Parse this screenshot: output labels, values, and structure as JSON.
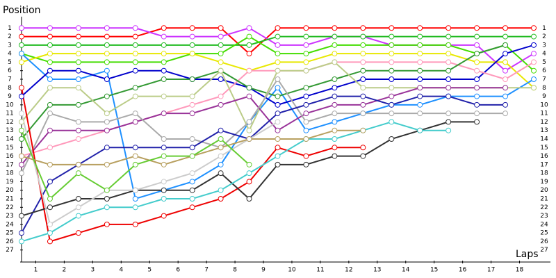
{
  "chart_data": {
    "type": "line",
    "y_title": "Position",
    "x_title": "Laps",
    "x": [
      0,
      1,
      2,
      3,
      4,
      5,
      6,
      7,
      8,
      9,
      10,
      11,
      12,
      13,
      14,
      15,
      16,
      17,
      18
    ],
    "xlim": [
      0,
      18
    ],
    "xticks": [
      {
        "value": 0.5,
        "label": "1"
      },
      {
        "value": 1.5,
        "label": "2"
      },
      {
        "value": 2.5,
        "label": "3"
      },
      {
        "value": 3.5,
        "label": "4"
      },
      {
        "value": 4.5,
        "label": "5"
      },
      {
        "value": 5.5,
        "label": "6"
      },
      {
        "value": 6.5,
        "label": "7"
      },
      {
        "value": 7.5,
        "label": "8"
      },
      {
        "value": 8.5,
        "label": "9"
      },
      {
        "value": 9.5,
        "label": "10"
      },
      {
        "value": 10.5,
        "label": "11"
      },
      {
        "value": 11.5,
        "label": "12"
      },
      {
        "value": 12.5,
        "label": "13"
      },
      {
        "value": 13.5,
        "label": "14"
      },
      {
        "value": 14.5,
        "label": "15"
      },
      {
        "value": 15.5,
        "label": "16"
      },
      {
        "value": 16.5,
        "label": "17"
      },
      {
        "value": 17.5,
        "label": "18"
      }
    ],
    "ylim": [
      28,
      0
    ],
    "yticks": [
      1,
      2,
      3,
      4,
      5,
      6,
      7,
      8,
      9,
      10,
      11,
      12,
      13,
      14,
      15,
      16,
      17,
      18,
      19,
      20,
      21,
      22,
      23,
      24,
      25,
      26,
      27
    ],
    "series": [
      {
        "color": "#ff0000",
        "values": [
          2,
          2,
          2,
          2,
          2,
          1,
          1,
          1,
          4,
          1,
          1,
          1,
          1,
          1,
          1,
          1,
          1,
          1,
          1
        ]
      },
      {
        "color": "#cc33ff",
        "values": [
          1,
          1,
          1,
          1,
          1,
          2,
          2,
          2,
          1,
          3,
          3,
          2,
          2,
          3,
          3,
          3,
          3,
          6,
          4
        ]
      },
      {
        "color": "#22bb22",
        "values": [
          3,
          3,
          3,
          3,
          3,
          3,
          3,
          3,
          3,
          2,
          2,
          2,
          2,
          2,
          2,
          2,
          2,
          2,
          2
        ]
      },
      {
        "color": "#44dd00",
        "values": [
          4,
          5,
          5,
          5,
          5,
          5,
          4,
          4,
          2,
          4,
          4,
          3,
          3,
          3,
          3,
          3,
          4,
          3,
          6
        ]
      },
      {
        "color": "#e8e800",
        "values": [
          5,
          4,
          4,
          4,
          4,
          4,
          4,
          5,
          6,
          5,
          5,
          4,
          4,
          4,
          4,
          4,
          5,
          5,
          8
        ]
      },
      {
        "color": "#1e90ff",
        "values": [
          4,
          7,
          7,
          6,
          21,
          20,
          19,
          17,
          12,
          8,
          13,
          12,
          11,
          10,
          10,
          9,
          9,
          9,
          7
        ]
      },
      {
        "color": "#0000cc",
        "values": [
          9,
          6,
          6,
          7,
          6,
          6,
          7,
          7,
          8,
          10,
          9,
          8,
          7,
          7,
          7,
          7,
          7,
          4,
          3
        ]
      },
      {
        "color": "#ff99bb",
        "values": [
          16,
          15,
          14,
          13,
          12,
          11,
          10,
          9,
          6,
          6,
          6,
          5,
          5,
          5,
          5,
          5,
          6,
          7,
          5
        ]
      },
      {
        "color": "#339933",
        "values": [
          14,
          10,
          10,
          9,
          8,
          7,
          7,
          6,
          8,
          9,
          8,
          7,
          6,
          6,
          6,
          6,
          4,
          3,
          null
        ]
      },
      {
        "color": "#bbcc88",
        "values": [
          12,
          8,
          8,
          11,
          9,
          9,
          9,
          6,
          13,
          6,
          6,
          5,
          8,
          8,
          8,
          8,
          8,
          8,
          8
        ]
      },
      {
        "color": "#993399",
        "values": [
          17,
          13,
          13,
          13,
          12,
          11,
          11,
          10,
          9,
          13,
          11,
          10,
          10,
          9,
          8,
          8,
          8,
          8,
          null
        ]
      },
      {
        "color": "#aaaaaa",
        "values": [
          18,
          11,
          12,
          12,
          11,
          14,
          14,
          15,
          12,
          7,
          12,
          11,
          11,
          11,
          11,
          11,
          11,
          11,
          null
        ]
      },
      {
        "color": "#2222aa",
        "values": [
          25,
          19,
          17,
          15,
          15,
          15,
          15,
          13,
          14,
          11,
          10,
          9,
          9,
          10,
          9,
          9,
          10,
          10,
          null
        ]
      },
      {
        "color": "#ee0000",
        "values": [
          8,
          26,
          25,
          24,
          24,
          23,
          22,
          21,
          19,
          15,
          16,
          15,
          15,
          null,
          null,
          null,
          null,
          null,
          null
        ]
      },
      {
        "color": "#333333",
        "values": [
          23,
          22,
          21,
          21,
          20,
          20,
          20,
          18,
          21,
          17,
          17,
          16,
          16,
          14,
          13,
          12,
          12,
          null,
          null
        ]
      },
      {
        "color": "#44cccc",
        "values": [
          26,
          25,
          23,
          22,
          22,
          21,
          21,
          20,
          18,
          16,
          14,
          14,
          13,
          12,
          13,
          13,
          null,
          null,
          null
        ]
      },
      {
        "color": "#cccccc",
        "values": [
          11,
          24,
          22,
          20,
          20,
          19,
          18,
          16,
          14,
          12,
          null,
          null,
          null,
          null,
          null,
          null,
          null,
          null,
          null
        ]
      },
      {
        "color": "#b8a060",
        "values": [
          16,
          17,
          17,
          17,
          16,
          17,
          16,
          15,
          14,
          14,
          14,
          13,
          13,
          null,
          null,
          null,
          null,
          null,
          null
        ]
      },
      {
        "color": "#66cc33",
        "values": [
          13,
          21,
          18,
          20,
          17,
          16,
          16,
          14,
          17,
          null,
          null,
          null,
          null,
          null,
          null,
          null,
          null,
          null,
          null
        ]
      }
    ]
  }
}
